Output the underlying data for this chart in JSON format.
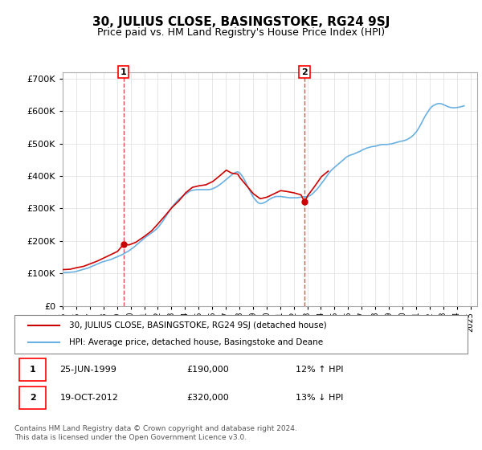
{
  "title": "30, JULIUS CLOSE, BASINGSTOKE, RG24 9SJ",
  "subtitle": "Price paid vs. HM Land Registry's House Price Index (HPI)",
  "ylabel": "",
  "xlim_start": 1995.0,
  "xlim_end": 2025.5,
  "ylim": [
    0,
    720000
  ],
  "yticks": [
    0,
    100000,
    200000,
    300000,
    400000,
    500000,
    600000,
    700000
  ],
  "ytick_labels": [
    "£0",
    "£100K",
    "£200K",
    "£300K",
    "£400K",
    "£500K",
    "£600K",
    "£700K"
  ],
  "hpi_color": "#6ab0e0",
  "price_color": "#cc0000",
  "marker_color": "#cc0000",
  "vline_color": "#e05050",
  "grid_color": "#dddddd",
  "background_color": "#ffffff",
  "legend_box_color": "#000000",
  "sale1_date": 1999.48,
  "sale1_price": 190000,
  "sale1_label": "1",
  "sale2_date": 2012.8,
  "sale2_price": 320000,
  "sale2_label": "2",
  "legend_line1": "30, JULIUS CLOSE, BASINGSTOKE, RG24 9SJ (detached house)",
  "legend_line2": "HPI: Average price, detached house, Basingstoke and Deane",
  "table_row1_num": "1",
  "table_row1_date": "25-JUN-1999",
  "table_row1_price": "£190,000",
  "table_row1_hpi": "12% ↑ HPI",
  "table_row2_num": "2",
  "table_row2_date": "19-OCT-2012",
  "table_row2_price": "£320,000",
  "table_row2_hpi": "13% ↓ HPI",
  "footer": "Contains HM Land Registry data © Crown copyright and database right 2024.\nThis data is licensed under the Open Government Licence v3.0.",
  "hpi_years": [
    1995.04,
    1995.21,
    1995.38,
    1995.54,
    1995.71,
    1995.88,
    1996.04,
    1996.21,
    1996.38,
    1996.54,
    1996.71,
    1996.88,
    1997.04,
    1997.21,
    1997.38,
    1997.54,
    1997.71,
    1997.88,
    1998.04,
    1998.21,
    1998.38,
    1998.54,
    1998.71,
    1998.88,
    1999.04,
    1999.21,
    1999.38,
    1999.54,
    1999.71,
    1999.88,
    2000.04,
    2000.21,
    2000.38,
    2000.54,
    2000.71,
    2000.88,
    2001.04,
    2001.21,
    2001.38,
    2001.54,
    2001.71,
    2001.88,
    2002.04,
    2002.21,
    2002.38,
    2002.54,
    2002.71,
    2002.88,
    2003.04,
    2003.21,
    2003.38,
    2003.54,
    2003.71,
    2003.88,
    2004.04,
    2004.21,
    2004.38,
    2004.54,
    2004.71,
    2004.88,
    2005.04,
    2005.21,
    2005.38,
    2005.54,
    2005.71,
    2005.88,
    2006.04,
    2006.21,
    2006.38,
    2006.54,
    2006.71,
    2006.88,
    2007.04,
    2007.21,
    2007.38,
    2007.54,
    2007.71,
    2007.88,
    2008.04,
    2008.21,
    2008.38,
    2008.54,
    2008.71,
    2008.88,
    2009.04,
    2009.21,
    2009.38,
    2009.54,
    2009.71,
    2009.88,
    2010.04,
    2010.21,
    2010.38,
    2010.54,
    2010.71,
    2010.88,
    2011.04,
    2011.21,
    2011.38,
    2011.54,
    2011.71,
    2011.88,
    2012.04,
    2012.21,
    2012.38,
    2012.54,
    2012.71,
    2012.88,
    2013.04,
    2013.21,
    2013.38,
    2013.54,
    2013.71,
    2013.88,
    2014.04,
    2014.21,
    2014.38,
    2014.54,
    2014.71,
    2014.88,
    2015.04,
    2015.21,
    2015.38,
    2015.54,
    2015.71,
    2015.88,
    2016.04,
    2016.21,
    2016.38,
    2016.54,
    2016.71,
    2016.88,
    2017.04,
    2017.21,
    2017.38,
    2017.54,
    2017.71,
    2017.88,
    2018.04,
    2018.21,
    2018.38,
    2018.54,
    2018.71,
    2018.88,
    2019.04,
    2019.21,
    2019.38,
    2019.54,
    2019.71,
    2019.88,
    2020.04,
    2020.21,
    2020.38,
    2020.54,
    2020.71,
    2020.88,
    2021.04,
    2021.21,
    2021.38,
    2021.54,
    2021.71,
    2021.88,
    2022.04,
    2022.21,
    2022.38,
    2022.54,
    2022.71,
    2022.88,
    2023.04,
    2023.21,
    2023.38,
    2023.54,
    2023.71,
    2023.88,
    2024.04,
    2024.21,
    2024.38,
    2024.54
  ],
  "hpi_values": [
    102000,
    103000,
    103500,
    104000,
    104500,
    105000,
    107000,
    109000,
    111000,
    113000,
    115000,
    117000,
    120000,
    123000,
    126000,
    129000,
    132000,
    135000,
    137000,
    139000,
    141000,
    143000,
    146000,
    149000,
    152000,
    155000,
    158000,
    162000,
    166000,
    170000,
    175000,
    180000,
    186000,
    192000,
    198000,
    204000,
    210000,
    215000,
    220000,
    225000,
    230000,
    236000,
    243000,
    252000,
    262000,
    272000,
    283000,
    294000,
    304000,
    313000,
    321000,
    328000,
    334000,
    339000,
    344000,
    349000,
    354000,
    356000,
    357000,
    358000,
    358000,
    358000,
    358000,
    358000,
    358000,
    359000,
    361000,
    364000,
    368000,
    373000,
    378000,
    384000,
    390000,
    396000,
    402000,
    407000,
    411000,
    413000,
    409000,
    400000,
    388000,
    374000,
    360000,
    346000,
    334000,
    325000,
    318000,
    315000,
    316000,
    319000,
    323000,
    328000,
    332000,
    335000,
    337000,
    337000,
    337000,
    336000,
    335000,
    334000,
    333000,
    333000,
    333000,
    333000,
    334000,
    335000,
    336000,
    336000,
    337000,
    340000,
    345000,
    352000,
    359000,
    368000,
    377000,
    386000,
    396000,
    406000,
    415000,
    422000,
    428000,
    434000,
    440000,
    446000,
    452000,
    458000,
    462000,
    465000,
    467000,
    470000,
    473000,
    476000,
    480000,
    483000,
    486000,
    488000,
    490000,
    491000,
    492000,
    494000,
    496000,
    497000,
    497000,
    497000,
    498000,
    499000,
    501000,
    503000,
    505000,
    507000,
    508000,
    510000,
    513000,
    517000,
    522000,
    529000,
    537000,
    548000,
    561000,
    574000,
    587000,
    598000,
    608000,
    615000,
    619000,
    622000,
    623000,
    622000,
    619000,
    616000,
    613000,
    611000,
    610000,
    610000,
    611000,
    612000,
    614000,
    616000
  ],
  "price_line_years": [
    1995.04,
    1995.54,
    1996.04,
    1996.54,
    1997.04,
    1997.54,
    1998.04,
    1998.54,
    1999.04,
    1999.48,
    1999.88,
    2000.38,
    2001.04,
    2001.54,
    2002.04,
    2002.54,
    2003.04,
    2003.54,
    2004.04,
    2004.54,
    2005.04,
    2005.54,
    2006.04,
    2006.54,
    2007.04,
    2007.38,
    2007.54,
    2007.88,
    2008.04,
    2008.54,
    2009.04,
    2009.54,
    2010.04,
    2010.54,
    2011.04,
    2011.54,
    2012.04,
    2012.54,
    2012.8,
    2013.04,
    2013.54,
    2014.04,
    2014.54
  ],
  "price_line_values": [
    112000,
    113000,
    118000,
    122000,
    130000,
    138000,
    148000,
    158000,
    168000,
    190000,
    188000,
    196000,
    215000,
    231000,
    254000,
    278000,
    303000,
    323000,
    348000,
    365000,
    370000,
    373000,
    383000,
    400000,
    418000,
    410000,
    408000,
    406000,
    395000,
    370000,
    345000,
    330000,
    335000,
    345000,
    355000,
    352000,
    348000,
    342000,
    320000,
    340000,
    368000,
    398000,
    415000
  ]
}
